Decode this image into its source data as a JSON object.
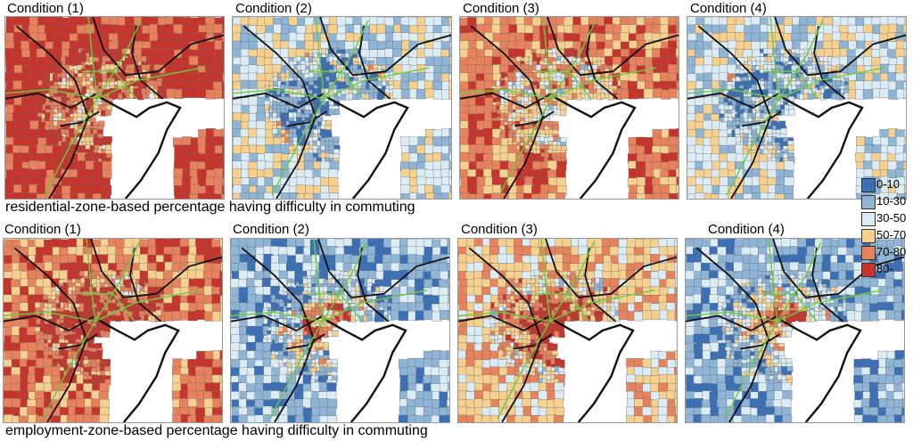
{
  "colors": {
    "class_0_10": "#3b6fb6",
    "class_10_30": "#8eb4d6",
    "class_30_50": "#dcecf4",
    "class_50_70": "#f5d08e",
    "class_70_80": "#e8825c",
    "class_80_plus": "#c7342c",
    "sea": "#ffffff",
    "rail": "#6ccc3c",
    "border": "#111111"
  },
  "rows": [
    {
      "caption": "residential-zone-based percentage having difficulty in commuting",
      "panels": [
        {
          "label": "Condition (1)",
          "dominant_class": "80-"
        },
        {
          "label": "Condition (2)",
          "dominant_class": "30-50"
        },
        {
          "label": "Condition (3)",
          "dominant_class": "70-80"
        },
        {
          "label": "Condition (4)",
          "dominant_class": "30-50"
        }
      ]
    },
    {
      "caption": "employment-zone-based percentage having difficulty in commuting",
      "panels": [
        {
          "label": "Condition (1)",
          "dominant_class": "70-80"
        },
        {
          "label": "Condition (2)",
          "dominant_class": "10-30"
        },
        {
          "label": "Condition (3)",
          "dominant_class": "50-70"
        },
        {
          "label": "Condition (4)",
          "dominant_class": "10-30"
        }
      ]
    }
  ],
  "legend": [
    {
      "label": "0-10",
      "color": "#3b6fb6"
    },
    {
      "label": "10-30",
      "color": "#8eb4d6"
    },
    {
      "label": "30-50",
      "color": "#dcecf4"
    },
    {
      "label": "50-70",
      "color": "#f5d08e"
    },
    {
      "label": "70-80",
      "color": "#e8825c"
    },
    {
      "label": "80-",
      "color": "#c7342c"
    }
  ]
}
